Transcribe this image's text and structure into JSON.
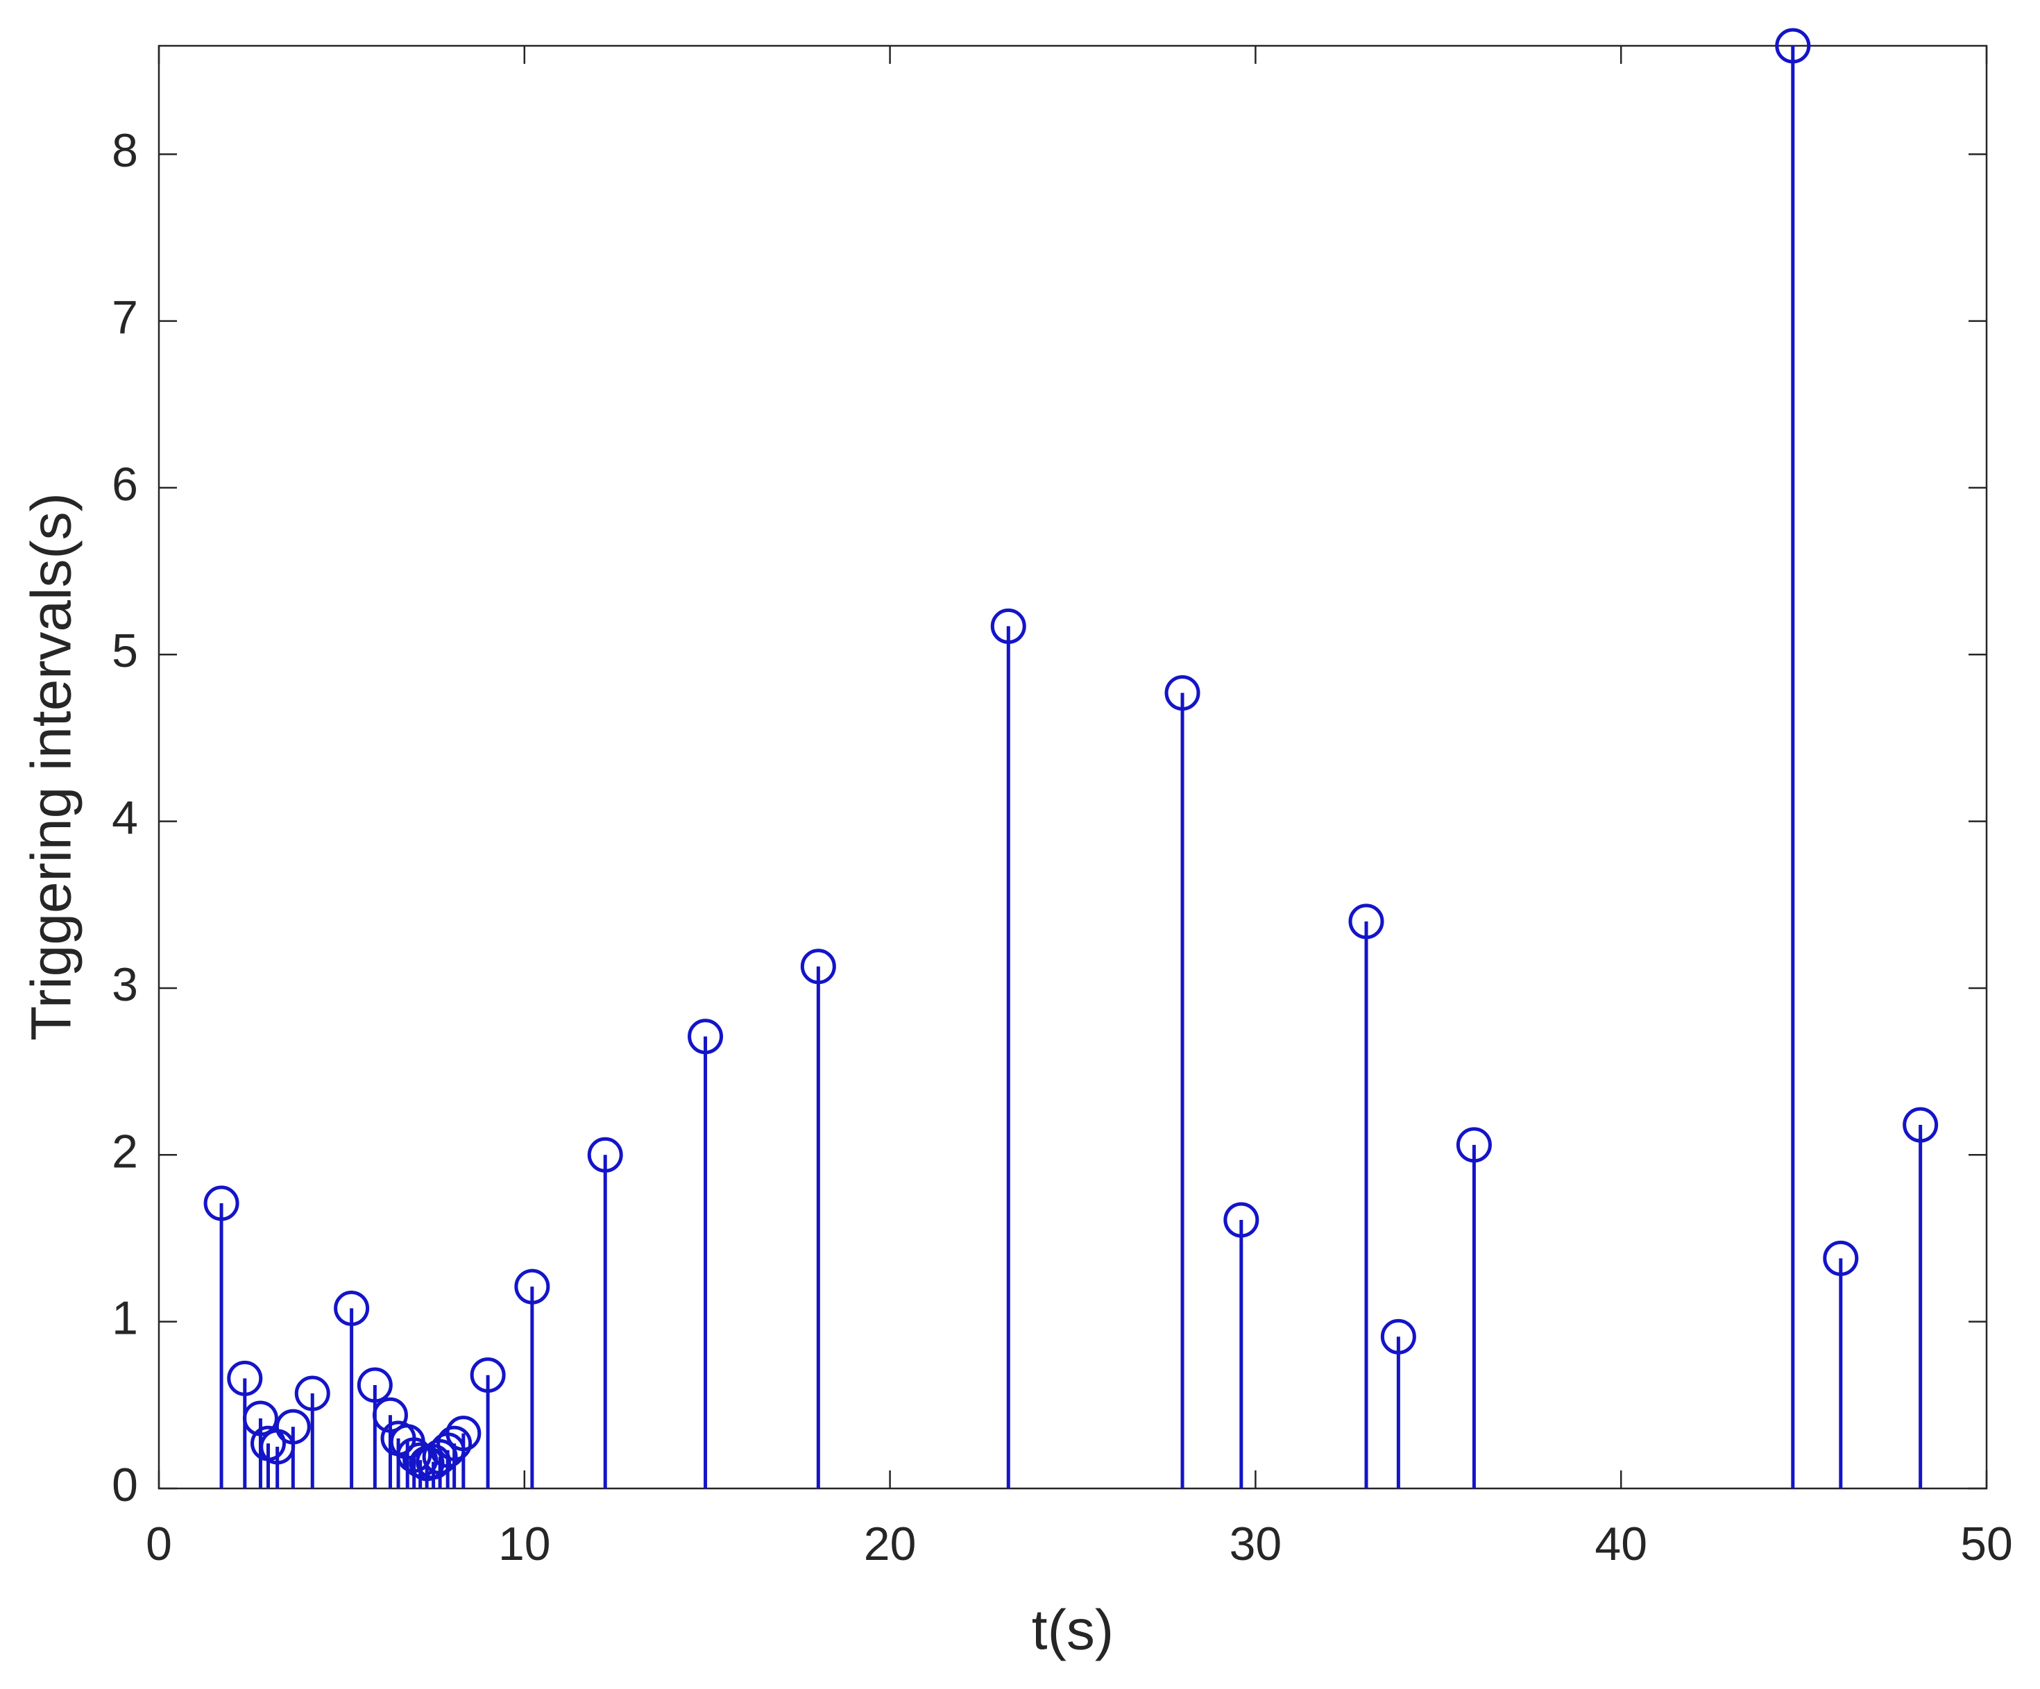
{
  "chart_data": {
    "type": "stem",
    "xlabel": "t(s)",
    "ylabel": "Triggering intervals(s)",
    "color": "#1414c8",
    "x": [
      1.71,
      2.35,
      2.78,
      2.99,
      3.24,
      3.67,
      4.2,
      5.27,
      5.91,
      6.33,
      6.55,
      6.8,
      6.98,
      7.15,
      7.33,
      7.51,
      7.69,
      7.9,
      8.08,
      8.33,
      9.0,
      10.21,
      12.21,
      14.95,
      18.04,
      23.24,
      28.0,
      29.61,
      33.03,
      33.91,
      35.98,
      44.7,
      46.01,
      48.19
    ],
    "values": [
      1.71,
      0.66,
      0.42,
      0.27,
      0.25,
      0.37,
      0.57,
      1.08,
      0.62,
      0.44,
      0.3,
      0.28,
      0.2,
      0.17,
      0.15,
      0.16,
      0.19,
      0.23,
      0.27,
      0.33,
      0.68,
      1.21,
      2.0,
      2.71,
      3.13,
      5.17,
      4.77,
      1.61,
      3.4,
      0.91,
      2.06,
      8.65,
      1.38,
      2.18
    ],
    "xlim": [
      0,
      50
    ],
    "xticks": [
      0,
      10,
      20,
      30,
      40,
      50
    ],
    "ylim": [
      0,
      8.65
    ],
    "yticks": [
      0,
      1,
      2,
      3,
      4,
      5,
      6,
      7,
      8
    ],
    "grid": false
  }
}
